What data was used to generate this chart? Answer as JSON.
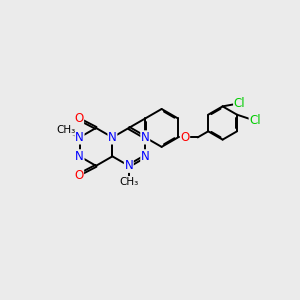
{
  "background_color": "#ebebeb",
  "bond_color": "#000000",
  "N_color": "#0000ff",
  "O_color": "#ff0000",
  "Cl_color": "#00cc00",
  "line_width": 1.4,
  "dbo": 0.05,
  "font_size": 8.5,
  "figsize": [
    3.0,
    3.0
  ],
  "dpi": 100,
  "xlim": [
    0,
    10
  ],
  "ylim": [
    0,
    10
  ]
}
